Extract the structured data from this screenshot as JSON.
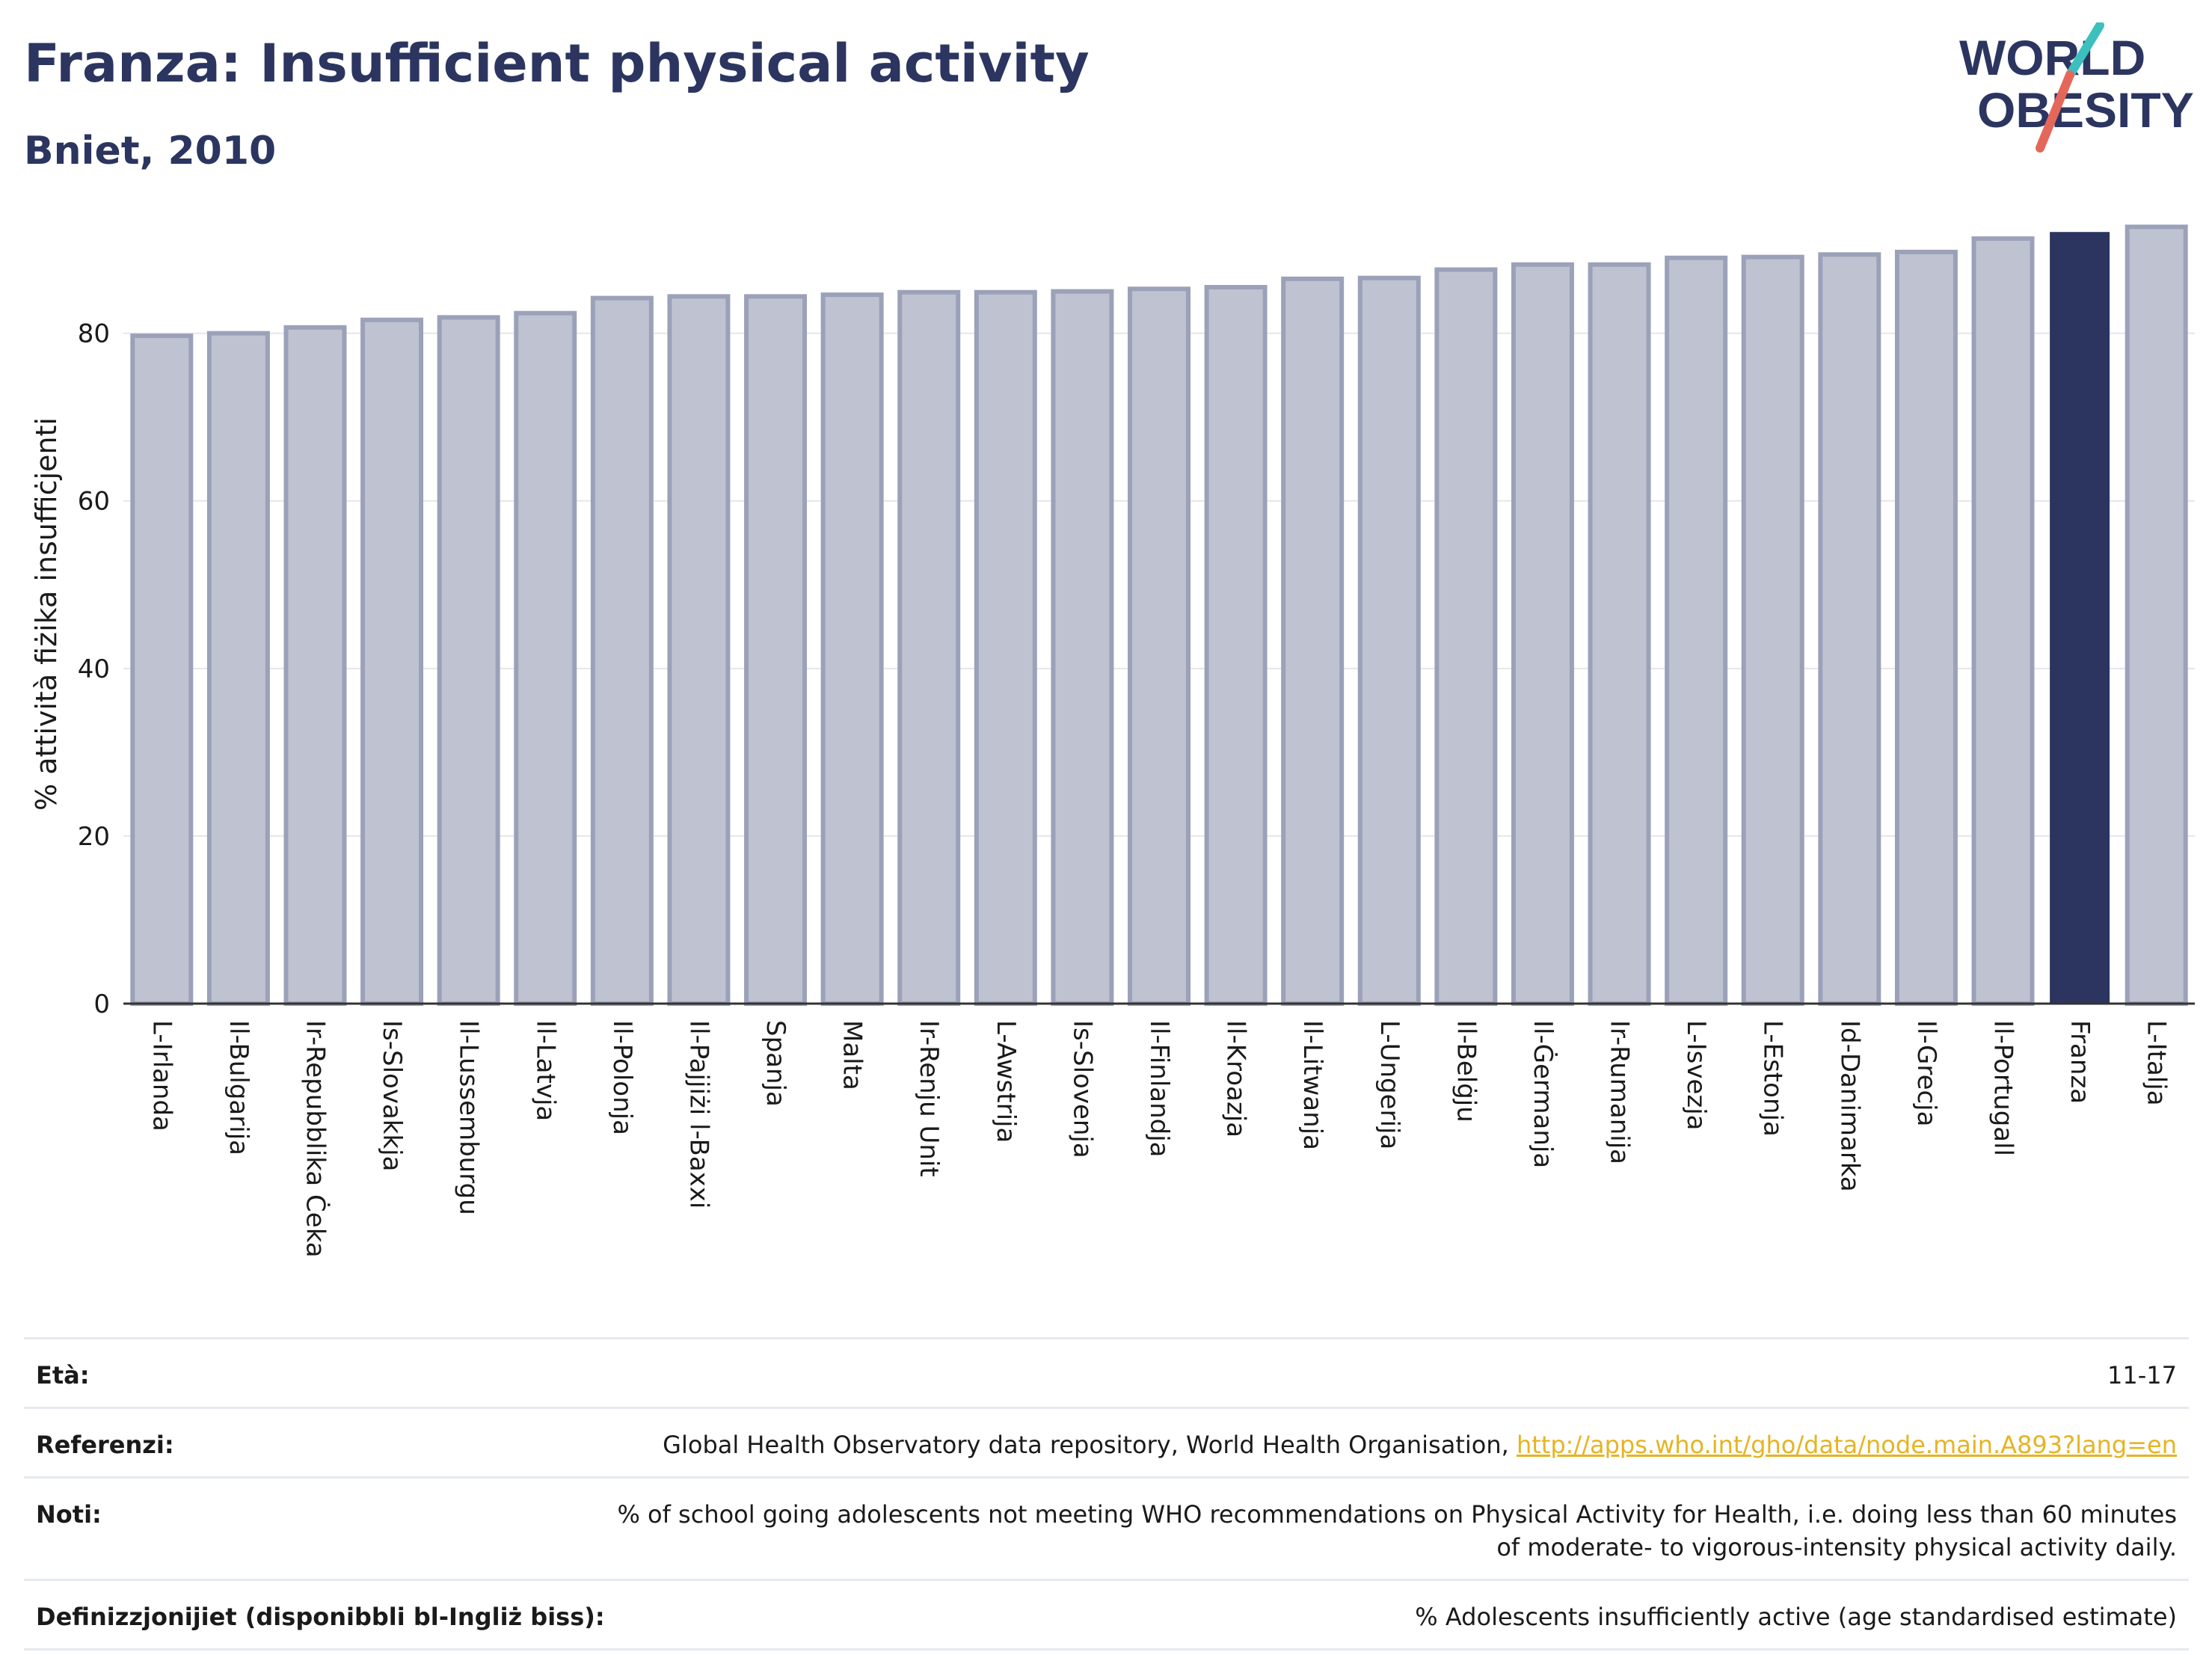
{
  "header": {
    "title": "Franza: Insufficient physical activity",
    "subtitle": "Bniet, 2010"
  },
  "logo": {
    "line1": "WORLD",
    "line2": "OBESITY",
    "colors": {
      "text": "#2b3560",
      "slash_teal": "#3bbfbf",
      "slash_red": "#e5675a"
    }
  },
  "colors": {
    "bar_fill": "#bfc3d1",
    "bar_stroke": "#9ba1b8",
    "highlight": "#2b3560",
    "grid": "#e6e6ea",
    "axis_text": "#1a1a1a"
  },
  "chart_data": {
    "type": "bar",
    "title": "Franza: Insufficient physical activity",
    "subtitle": "Bniet, 2010",
    "ylabel": "% attività fiżika insuffiċjenti",
    "xlabel": "",
    "ylim": [
      0,
      93
    ],
    "yticks": [
      0,
      20,
      40,
      60,
      80
    ],
    "grid": true,
    "highlight": "Franza",
    "categories": [
      "L-Irlanda",
      "Il-Bulgarija",
      "Ir-Repubblika Ċeka",
      "Is-Slovakkja",
      "Il-Lussemburgu",
      "Il-Latvja",
      "Il-Polonja",
      "Il-Pajjiżi l-Baxxi",
      "Spanja",
      "Malta",
      "Ir-Renju Unit",
      "L-Awstrija",
      "Is-Slovenja",
      "Il-Finlandja",
      "Il-Kroazja",
      "Il-Litwanja",
      "L-Ungerija",
      "Il-Belġju",
      "Il-Ġermanja",
      "Ir-Rumanija",
      "L-Isvezja",
      "L-Estonja",
      "Id-Danimarka",
      "Il-Grecja",
      "Il-Portugall",
      "Franza",
      "L-Italja"
    ],
    "values": [
      79.7,
      80.0,
      80.7,
      81.6,
      81.9,
      82.4,
      84.2,
      84.4,
      84.4,
      84.6,
      84.9,
      84.9,
      85.0,
      85.3,
      85.5,
      86.5,
      86.6,
      87.6,
      88.2,
      88.2,
      89.0,
      89.1,
      89.4,
      89.7,
      91.3,
      92.0,
      92.7
    ]
  },
  "meta": {
    "age_label": "Età:",
    "age_value": "11-17",
    "ref_label": "Referenzi:",
    "ref_text": "Global Health Observatory data repository, World Health Organisation, ",
    "ref_link": "http://apps.who.int/gho/data/node.main.A893?lang=en",
    "notes_label": "Noti:",
    "notes_text": "% of school going adolescents not meeting WHO recommendations on Physical Activity for Health, i.e. doing less than 60 minutes of moderate- to vigorous-intensity physical activity daily.",
    "def_label": "Definizzjonijiet (disponibbli bl-Ingliż biss):",
    "def_text": "% Adolescents insufficiently active (age standardised estimate)"
  }
}
